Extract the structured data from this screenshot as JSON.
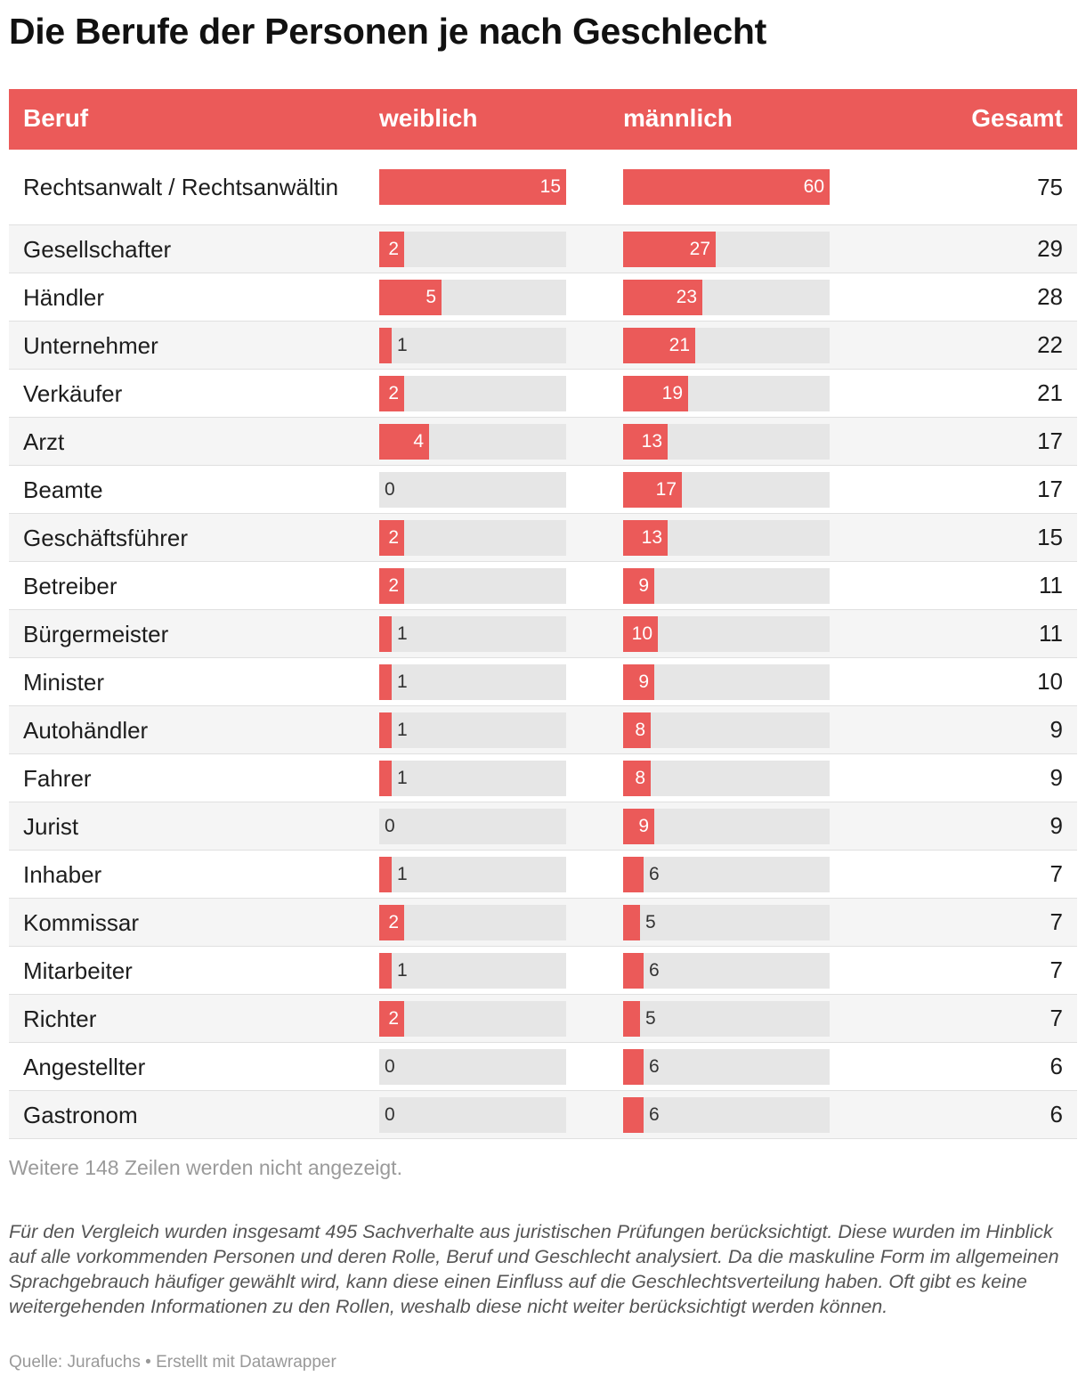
{
  "title": "Die Berufe der Personen je nach Geschlecht",
  "columns": {
    "beruf": "Beruf",
    "weiblich": "weiblich",
    "maennlich": "männlich",
    "gesamt": "Gesamt"
  },
  "colors": {
    "header_bg": "#eb5a59",
    "bar": "#eb5a59",
    "bar_track": "#e6e6e6",
    "row_alt": "#f5f5f5"
  },
  "chart_data": {
    "type": "table",
    "title": "Die Berufe der Personen je nach Geschlecht",
    "columns": [
      "Beruf",
      "weiblich",
      "männlich",
      "Gesamt"
    ],
    "bar_scale": {
      "weiblich_max": 15,
      "maennlich_max": 60
    },
    "rows": [
      {
        "beruf": "Rechtsanwalt / Rechtsanwältin",
        "weiblich": 15,
        "maennlich": 60,
        "gesamt": 75
      },
      {
        "beruf": "Gesellschafter",
        "weiblich": 2,
        "maennlich": 27,
        "gesamt": 29
      },
      {
        "beruf": "Händler",
        "weiblich": 5,
        "maennlich": 23,
        "gesamt": 28
      },
      {
        "beruf": "Unternehmer",
        "weiblich": 1,
        "maennlich": 21,
        "gesamt": 22
      },
      {
        "beruf": "Verkäufer",
        "weiblich": 2,
        "maennlich": 19,
        "gesamt": 21
      },
      {
        "beruf": "Arzt",
        "weiblich": 4,
        "maennlich": 13,
        "gesamt": 17
      },
      {
        "beruf": "Beamte",
        "weiblich": 0,
        "maennlich": 17,
        "gesamt": 17
      },
      {
        "beruf": "Geschäftsführer",
        "weiblich": 2,
        "maennlich": 13,
        "gesamt": 15
      },
      {
        "beruf": "Betreiber",
        "weiblich": 2,
        "maennlich": 9,
        "gesamt": 11
      },
      {
        "beruf": "Bürgermeister",
        "weiblich": 1,
        "maennlich": 10,
        "gesamt": 11
      },
      {
        "beruf": "Minister",
        "weiblich": 1,
        "maennlich": 9,
        "gesamt": 10
      },
      {
        "beruf": "Autohändler",
        "weiblich": 1,
        "maennlich": 8,
        "gesamt": 9
      },
      {
        "beruf": "Fahrer",
        "weiblich": 1,
        "maennlich": 8,
        "gesamt": 9
      },
      {
        "beruf": "Jurist",
        "weiblich": 0,
        "maennlich": 9,
        "gesamt": 9
      },
      {
        "beruf": "Inhaber",
        "weiblich": 1,
        "maennlich": 6,
        "gesamt": 7
      },
      {
        "beruf": "Kommissar",
        "weiblich": 2,
        "maennlich": 5,
        "gesamt": 7
      },
      {
        "beruf": "Mitarbeiter",
        "weiblich": 1,
        "maennlich": 6,
        "gesamt": 7
      },
      {
        "beruf": "Richter",
        "weiblich": 2,
        "maennlich": 5,
        "gesamt": 7
      },
      {
        "beruf": "Angestellter",
        "weiblich": 0,
        "maennlich": 6,
        "gesamt": 6
      },
      {
        "beruf": "Gastronom",
        "weiblich": 0,
        "maennlich": 6,
        "gesamt": 6
      }
    ]
  },
  "more_rows_text": "Weitere 148 Zeilen werden nicht angezeigt.",
  "note": "Für den Vergleich wurden insgesamt 495 Sachverhalte aus juristischen Prüfungen berücksichtigt. Diese wurden im Hinblick auf alle vorkommenden Personen und deren Rolle, Beruf und Geschlecht analysiert. Da die maskuline Form im allgemeinen Sprachgebrauch häufiger gewählt wird, kann diese einen Einfluss auf die Geschlechtsverteilung haben. Oft gibt es keine weitergehenden Informationen zu den Rollen, weshalb diese nicht weiter berücksichtigt werden können.",
  "source": "Quelle: Jurafuchs • Erstellt mit Datawrapper"
}
